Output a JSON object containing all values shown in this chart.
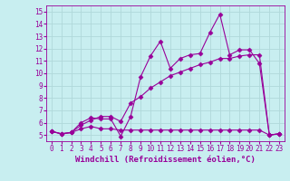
{
  "title": "",
  "xlabel": "Windchill (Refroidissement éolien,°C)",
  "ylabel": "",
  "xlim": [
    -0.5,
    23.5
  ],
  "ylim": [
    4.5,
    15.5
  ],
  "yticks": [
    5,
    6,
    7,
    8,
    9,
    10,
    11,
    12,
    13,
    14,
    15
  ],
  "xticks": [
    0,
    1,
    2,
    3,
    4,
    5,
    6,
    7,
    8,
    9,
    10,
    11,
    12,
    13,
    14,
    15,
    16,
    17,
    18,
    19,
    20,
    21,
    22,
    23
  ],
  "background_color": "#c8eef0",
  "grid_color": "#b0d8da",
  "line_color": "#990099",
  "line1_y": [
    5.3,
    5.1,
    5.2,
    6.0,
    6.4,
    6.3,
    6.3,
    4.9,
    6.5,
    9.7,
    11.4,
    12.6,
    10.4,
    11.2,
    11.5,
    11.6,
    13.3,
    14.8,
    11.5,
    11.9,
    11.9,
    10.8,
    5.0,
    5.1
  ],
  "line2_y": [
    5.3,
    5.1,
    5.2,
    5.8,
    6.2,
    6.5,
    6.5,
    6.1,
    7.6,
    8.1,
    8.8,
    9.3,
    9.8,
    10.1,
    10.4,
    10.7,
    10.9,
    11.2,
    11.2,
    11.4,
    11.5,
    11.5,
    5.0,
    5.1
  ],
  "line3_y": [
    5.3,
    5.1,
    5.2,
    5.5,
    5.7,
    5.5,
    5.5,
    5.4,
    5.4,
    5.4,
    5.4,
    5.4,
    5.4,
    5.4,
    5.4,
    5.4,
    5.4,
    5.4,
    5.4,
    5.4,
    5.4,
    5.4,
    5.0,
    5.1
  ],
  "marker": "D",
  "marker_size": 2.5,
  "linewidth": 0.8,
  "tick_fontsize": 5.5,
  "label_fontsize": 6.5,
  "label_font": "monospace"
}
